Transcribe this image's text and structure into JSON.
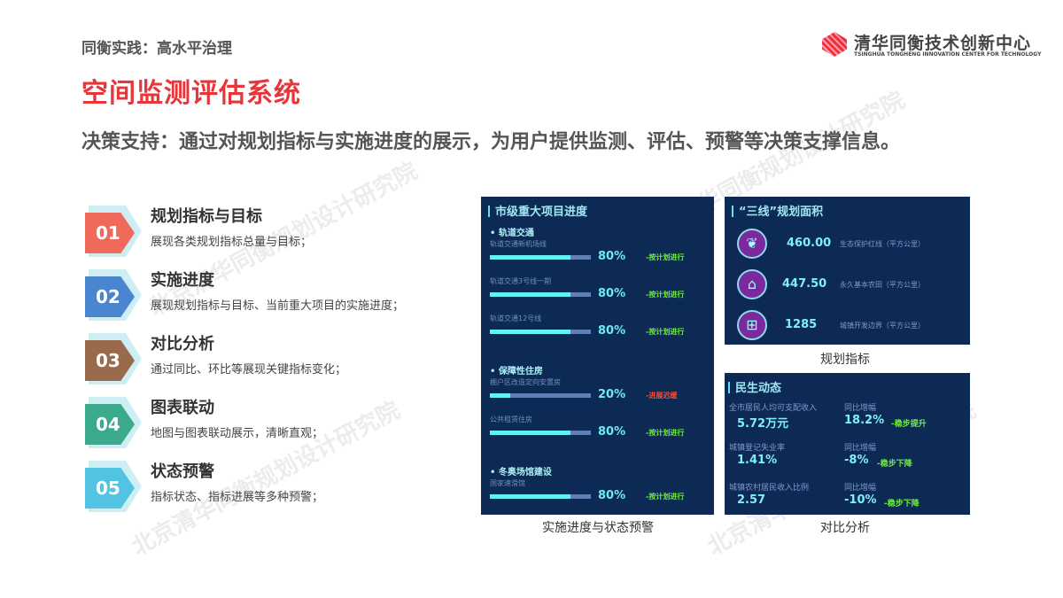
{
  "header": {
    "section": "同衡实践：高水平治理",
    "title": "空间监测评估系统",
    "subtitle": "决策支持：通过对规划指标与实施进度的展示，为用户提供监测、评估、预警等决策支撑信息。"
  },
  "logo": {
    "cn": "清华同衡技术创新中心",
    "en": "TSINGHUA TONGHENG INNOVATION CENTER FOR TECHNOLOGY"
  },
  "watermark": "北京清华同衡规划设计研究院",
  "features": [
    {
      "num": "01",
      "title": "规划指标与目标",
      "desc": "展现各类规划指标总量与目标；",
      "color": "#ef6a5a"
    },
    {
      "num": "02",
      "title": "实施进度",
      "desc": "展现规划指标与目标、当前重大项目的实施进度；",
      "color": "#4a86d0"
    },
    {
      "num": "03",
      "title": "对比分析",
      "desc": "通过同比、环比等展现关键指标变化；",
      "color": "#9a6a4c"
    },
    {
      "num": "04",
      "title": "图表联动",
      "desc": "地图与图表联动展示，清晰直观；",
      "color": "#3aa98c"
    },
    {
      "num": "05",
      "title": "状态预警",
      "desc": "指标状态、指标进展等多种预警；",
      "color": "#52c3e2"
    }
  ],
  "progress_panel": {
    "title": "市级重大项目进度",
    "caption": "实施进度与状态预警",
    "categories": [
      {
        "name": "轨道交通",
        "projects": [
          {
            "name": "轨道交通新机场线",
            "progress": 80,
            "pct": "80%",
            "status": "-按计划进行",
            "status_color": "#6ef03a"
          },
          {
            "name": "轨道交通3号线一期",
            "progress": 80,
            "pct": "80%",
            "status": "-按计划进行",
            "status_color": "#6ef03a"
          },
          {
            "name": "轨道交通12号线",
            "progress": 80,
            "pct": "80%",
            "status": "-按计划进行",
            "status_color": "#6ef03a"
          }
        ]
      },
      {
        "name": "保障性住房",
        "projects": [
          {
            "name": "棚户区改造定向安置房",
            "progress": 20,
            "pct": "20%",
            "status": "-进展迟缓",
            "status_color": "#ff4a2a"
          },
          {
            "name": "公共租赁住房",
            "progress": 80,
            "pct": "80%",
            "status": "-按计划进行",
            "status_color": "#6ef03a"
          }
        ]
      },
      {
        "name": "冬奥场馆建设",
        "projects": [
          {
            "name": "国家速滑馆",
            "progress": 80,
            "pct": "80%",
            "status": "-按计划进行",
            "status_color": "#6ef03a"
          }
        ]
      }
    ]
  },
  "lines_panel": {
    "title": "“三线”规划面积",
    "caption": "规划指标",
    "rows": [
      {
        "icon": "leaf-icon",
        "value": "460.00",
        "label": "生态保护红线（平方公里）"
      },
      {
        "icon": "house-icon",
        "value": "447.50",
        "label": "永久基本农田（平方公里）"
      },
      {
        "icon": "grid-icon",
        "value": "1285",
        "label": "城镇开发边界（平方公里）"
      }
    ]
  },
  "livelihood_panel": {
    "title": "民生动态",
    "caption": "对比分析",
    "rows": [
      {
        "label": "全市居民人均可支配收入",
        "value": "5.72万元",
        "change_label": "同比增幅",
        "change": "18.2%",
        "trend": "-稳步提升"
      },
      {
        "label": "城镇登记失业率",
        "value": "1.41%",
        "change_label": "同比增幅",
        "change": "-8%",
        "trend": "-稳步下降"
      },
      {
        "label": "城镇农村居民收入比例",
        "value": "2.57",
        "change_label": "同比增幅",
        "change": "-10%",
        "trend": "-稳步下降"
      }
    ]
  }
}
